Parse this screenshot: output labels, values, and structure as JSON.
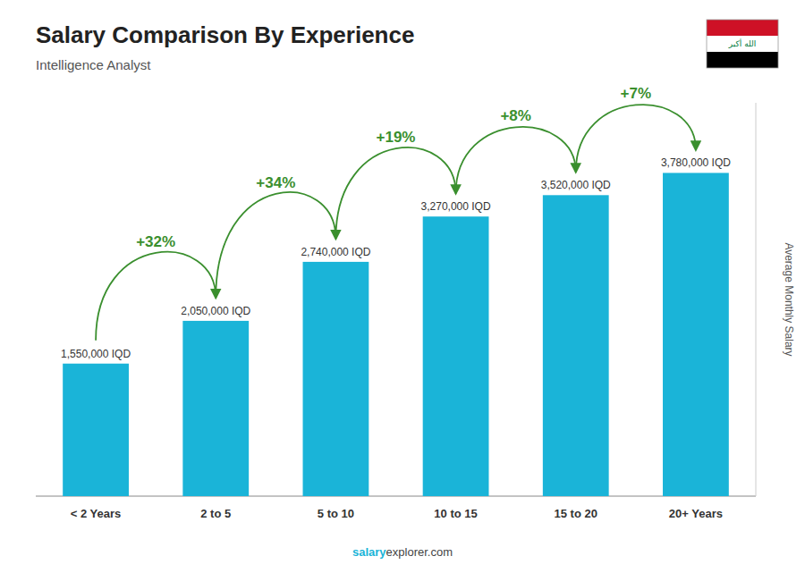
{
  "chart_data": {
    "type": "bar",
    "title": "Salary Comparison By Experience",
    "subtitle": "Intelligence Analyst",
    "ylabel": "Average Monthly Salary",
    "categories": [
      "< 2 Years",
      "2 to 5",
      "5 to 10",
      "10 to 15",
      "15 to 20",
      "20+ Years"
    ],
    "values": [
      1550000,
      2050000,
      2740000,
      3270000,
      3520000,
      3780000
    ],
    "value_labels": [
      "1,550,000 IQD",
      "2,050,000 IQD",
      "2,740,000 IQD",
      "3,270,000 IQD",
      "3,520,000 IQD",
      "3,780,000 IQD"
    ],
    "data_labels": true,
    "annotations": [
      "+32%",
      "+34%",
      "+19%",
      "+8%",
      "+7%"
    ],
    "color": "#1ab4d8",
    "ylim": [
      0,
      4600000
    ],
    "tick_labels": "x",
    "grid": false,
    "footer": [
      "salary",
      "explorer.com"
    ],
    "flag": {
      "text": "الله أكبر",
      "colors": [
        "#CE1126",
        "#FFFFFF",
        "#000000",
        "#007A3D"
      ]
    }
  }
}
